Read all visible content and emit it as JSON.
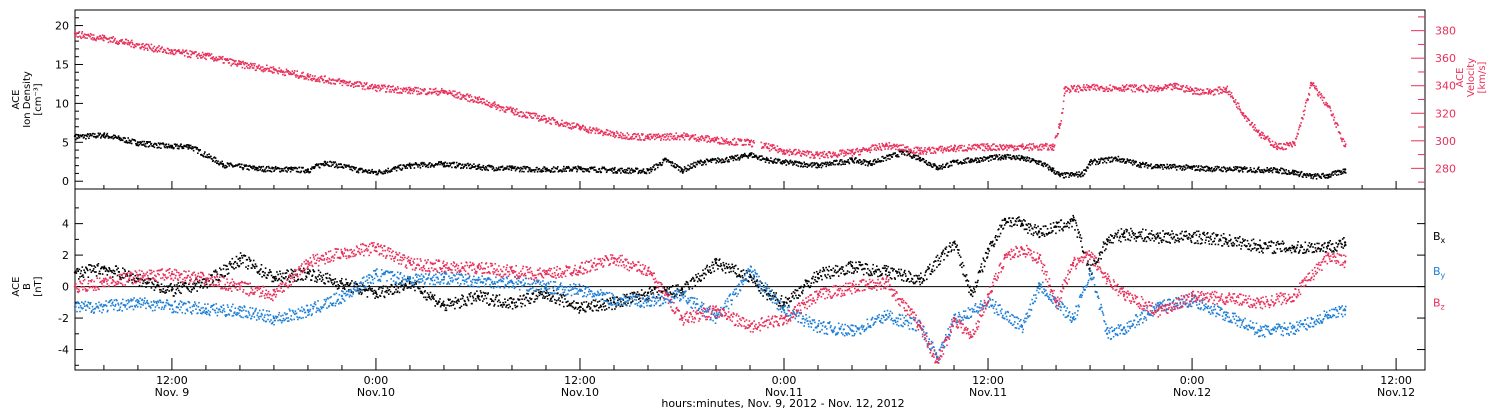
{
  "colors": {
    "black": "#000000",
    "red": "#e8305a",
    "blue": "#1f7fd6"
  },
  "x_axis": {
    "title": "hours:minutes, Nov. 9, 2012 - Nov. 12, 2012",
    "ticks": [
      {
        "hour": 12,
        "time": "12:00",
        "day": "Nov. 9"
      },
      {
        "hour": 24,
        "time": "0:00",
        "day": "Nov.10"
      },
      {
        "hour": 36,
        "time": "12:00",
        "day": "Nov.10"
      },
      {
        "hour": 48,
        "time": "0:00",
        "day": "Nov.11"
      },
      {
        "hour": 60,
        "time": "12:00",
        "day": "Nov.11"
      },
      {
        "hour": 72,
        "time": "0:00",
        "day": "Nov.12"
      },
      {
        "hour": 84,
        "time": "12:00",
        "day": "Nov.12"
      }
    ],
    "range_hours": [
      6.3,
      85.7
    ]
  },
  "chart_data": [
    {
      "type": "scatter",
      "panel": "top",
      "ylabel": [
        "ACE",
        "Ion Density",
        "[cm⁻³]"
      ],
      "ylim": [
        -1,
        22
      ],
      "yticks": [
        0,
        5,
        10,
        15,
        20
      ],
      "y2label": [
        "ACE",
        "Velocity",
        "[km/s]"
      ],
      "y2lim": [
        265,
        395
      ],
      "y2ticks": [
        280,
        300,
        320,
        340,
        360,
        380
      ],
      "series": [
        {
          "key": "density",
          "color": "black",
          "axis": "left",
          "points": [
            [
              6.3,
              5.8
            ],
            [
              8,
              6.0
            ],
            [
              10,
              5.0
            ],
            [
              12,
              4.5
            ],
            [
              13,
              4.6
            ],
            [
              15,
              2.2
            ],
            [
              17,
              1.7
            ],
            [
              19,
              1.6
            ],
            [
              20,
              1.5
            ],
            [
              21,
              2.5
            ],
            [
              23,
              1.5
            ],
            [
              24,
              1.2
            ],
            [
              26,
              2.1
            ],
            [
              28,
              2.3
            ],
            [
              30,
              1.9
            ],
            [
              32,
              1.7
            ],
            [
              34,
              1.6
            ],
            [
              36,
              1.7
            ],
            [
              38,
              1.5
            ],
            [
              40,
              1.4
            ],
            [
              41,
              2.8
            ],
            [
              42,
              1.5
            ],
            [
              43,
              2.5
            ],
            [
              45,
              3.0
            ],
            [
              46,
              3.5
            ],
            [
              47,
              2.8
            ],
            [
              48,
              2.5
            ],
            [
              49,
              2.3
            ],
            [
              50,
              2.1
            ],
            [
              52,
              2.8
            ],
            [
              53,
              2.4
            ],
            [
              55,
              3.8
            ],
            [
              56,
              3.0
            ],
            [
              57,
              1.8
            ],
            [
              58,
              2.5
            ],
            [
              59,
              2.8
            ],
            [
              60,
              3.0
            ],
            [
              61,
              3.3
            ],
            [
              62,
              3.0
            ],
            [
              63,
              2.5
            ],
            [
              63.8,
              1.5
            ],
            [
              64.2,
              0.8
            ],
            [
              65.5,
              1.0
            ],
            [
              66,
              2.5
            ],
            [
              67.5,
              3.0
            ],
            [
              69,
              2.2
            ],
            [
              70,
              2.0
            ],
            [
              72,
              1.8
            ],
            [
              73,
              1.7
            ],
            [
              75,
              1.6
            ],
            [
              77,
              1.5
            ],
            [
              78,
              1.2
            ],
            [
              79,
              0.7
            ],
            [
              80,
              0.8
            ],
            [
              81,
              1.5
            ]
          ]
        },
        {
          "key": "velocity",
          "color": "red",
          "axis": "right",
          "points": [
            [
              6.3,
              378
            ],
            [
              8,
              375
            ],
            [
              10,
              370
            ],
            [
              12,
              365
            ],
            [
              14,
              362
            ],
            [
              16,
              356
            ],
            [
              18,
              352
            ],
            [
              20,
              347
            ],
            [
              22,
              343
            ],
            [
              24,
              339
            ],
            [
              26,
              337
            ],
            [
              28,
              336
            ],
            [
              30,
              330
            ],
            [
              32,
              322
            ],
            [
              34,
              316
            ],
            [
              36,
              310
            ],
            [
              38,
              305
            ],
            [
              40,
              303
            ],
            [
              42,
              304
            ],
            [
              44,
              301
            ],
            [
              46,
              299
            ],
            [
              48,
              293
            ],
            [
              50,
              290
            ],
            [
              52,
              292
            ],
            [
              54,
              297
            ],
            [
              56,
              293
            ],
            [
              58,
              295
            ],
            [
              60,
              296
            ],
            [
              62,
              296
            ],
            [
              63.8,
              296
            ],
            [
              64.2,
              312
            ],
            [
              64.5,
              338
            ],
            [
              66,
              339
            ],
            [
              68,
              339
            ],
            [
              70,
              338
            ],
            [
              71,
              340
            ],
            [
              72,
              337
            ],
            [
              73,
              336
            ],
            [
              74,
              338
            ],
            [
              75,
              320
            ],
            [
              76,
              305
            ],
            [
              77,
              296
            ],
            [
              78,
              298
            ],
            [
              79,
              342
            ],
            [
              80,
              325
            ],
            [
              81,
              296
            ]
          ]
        }
      ]
    },
    {
      "type": "scatter",
      "panel": "bottom",
      "ylabel": [
        "ACE",
        "B",
        "[nT]"
      ],
      "ylim": [
        -5.3,
        6.2
      ],
      "yticks": [
        -4,
        -2,
        0,
        2,
        4
      ],
      "zero_line": true,
      "legend": "right",
      "series": [
        {
          "name": "Bx",
          "key": "bx",
          "color": "black",
          "points": [
            [
              6.3,
              0.9
            ],
            [
              8,
              1.2
            ],
            [
              10,
              0.5
            ],
            [
              12,
              -0.2
            ],
            [
              14,
              0.3
            ],
            [
              16,
              1.8
            ],
            [
              18,
              0.6
            ],
            [
              20,
              0.9
            ],
            [
              22,
              0.2
            ],
            [
              24,
              -0.4
            ],
            [
              26,
              0.3
            ],
            [
              28,
              -1.2
            ],
            [
              30,
              -0.6
            ],
            [
              32,
              -1.0
            ],
            [
              34,
              -0.4
            ],
            [
              36,
              -1.3
            ],
            [
              38,
              -1.0
            ],
            [
              40,
              -0.4
            ],
            [
              42,
              -0.2
            ],
            [
              44,
              1.5
            ],
            [
              46,
              0.6
            ],
            [
              47,
              -0.5
            ],
            [
              48,
              -1.0
            ],
            [
              50,
              0.8
            ],
            [
              52,
              1.3
            ],
            [
              54,
              1.0
            ],
            [
              56,
              0.5
            ],
            [
              58,
              2.8
            ],
            [
              59,
              -0.5
            ],
            [
              60,
              2.4
            ],
            [
              61,
              4.3
            ],
            [
              62,
              4.0
            ],
            [
              63,
              3.5
            ],
            [
              64,
              3.8
            ],
            [
              65,
              4.2
            ],
            [
              66,
              1.0
            ],
            [
              67,
              3.0
            ],
            [
              68,
              3.4
            ],
            [
              70,
              3.2
            ],
            [
              72,
              3.2
            ],
            [
              74,
              3.0
            ],
            [
              76,
              2.6
            ],
            [
              78,
              2.5
            ],
            [
              80,
              2.6
            ],
            [
              81,
              2.8
            ]
          ]
        },
        {
          "name": "By",
          "key": "by",
          "color": "blue",
          "points": [
            [
              6.3,
              -1.3
            ],
            [
              8,
              -1.2
            ],
            [
              10,
              -1.0
            ],
            [
              12,
              -1.2
            ],
            [
              14,
              -1.4
            ],
            [
              16,
              -1.5
            ],
            [
              18,
              -2.0
            ],
            [
              20,
              -1.5
            ],
            [
              22,
              -0.6
            ],
            [
              24,
              0.8
            ],
            [
              26,
              0.5
            ],
            [
              28,
              0.6
            ],
            [
              30,
              0.4
            ],
            [
              32,
              0.3
            ],
            [
              34,
              0.0
            ],
            [
              36,
              -0.2
            ],
            [
              38,
              -0.8
            ],
            [
              40,
              -0.9
            ],
            [
              42,
              -0.5
            ],
            [
              44,
              -2.0
            ],
            [
              46,
              1.0
            ],
            [
              48,
              -1.5
            ],
            [
              50,
              -2.5
            ],
            [
              52,
              -2.8
            ],
            [
              54,
              -1.8
            ],
            [
              56,
              -2.5
            ],
            [
              57,
              -4.5
            ],
            [
              58,
              -2.0
            ],
            [
              60,
              -1.0
            ],
            [
              62,
              -2.5
            ],
            [
              63,
              0.2
            ],
            [
              64,
              -1.0
            ],
            [
              65,
              -2.0
            ],
            [
              66,
              1.0
            ],
            [
              67,
              -3.0
            ],
            [
              68,
              -2.6
            ],
            [
              70,
              -1.2
            ],
            [
              72,
              -0.8
            ],
            [
              74,
              -1.8
            ],
            [
              76,
              -2.8
            ],
            [
              78,
              -2.6
            ],
            [
              80,
              -1.8
            ],
            [
              81,
              -1.5
            ]
          ]
        },
        {
          "name": "Bz",
          "key": "bz",
          "color": "red",
          "points": [
            [
              6.3,
              0.0
            ],
            [
              8,
              0.3
            ],
            [
              10,
              0.7
            ],
            [
              12,
              0.8
            ],
            [
              14,
              0.5
            ],
            [
              16,
              0.0
            ],
            [
              18,
              -0.5
            ],
            [
              20,
              1.6
            ],
            [
              22,
              2.2
            ],
            [
              24,
              2.5
            ],
            [
              26,
              1.5
            ],
            [
              28,
              1.3
            ],
            [
              30,
              1.2
            ],
            [
              32,
              1.0
            ],
            [
              34,
              0.8
            ],
            [
              36,
              1.2
            ],
            [
              38,
              1.8
            ],
            [
              40,
              1.0
            ],
            [
              42,
              -2.0
            ],
            [
              44,
              -1.5
            ],
            [
              46,
              -2.5
            ],
            [
              48,
              -2.0
            ],
            [
              50,
              -0.5
            ],
            [
              52,
              0.0
            ],
            [
              54,
              0.3
            ],
            [
              56,
              -2.5
            ],
            [
              57,
              -4.8
            ],
            [
              58,
              -2.0
            ],
            [
              59,
              -3.2
            ],
            [
              60,
              -0.5
            ],
            [
              61,
              2.0
            ],
            [
              62,
              2.4
            ],
            [
              63,
              1.8
            ],
            [
              64,
              -1.0
            ],
            [
              65,
              1.5
            ],
            [
              66,
              2.0
            ],
            [
              67,
              0.5
            ],
            [
              68,
              -0.5
            ],
            [
              70,
              -1.5
            ],
            [
              72,
              -0.6
            ],
            [
              74,
              -0.7
            ],
            [
              76,
              -1.0
            ],
            [
              78,
              -0.5
            ],
            [
              80,
              2.0
            ],
            [
              81,
              1.6
            ]
          ]
        }
      ]
    }
  ]
}
